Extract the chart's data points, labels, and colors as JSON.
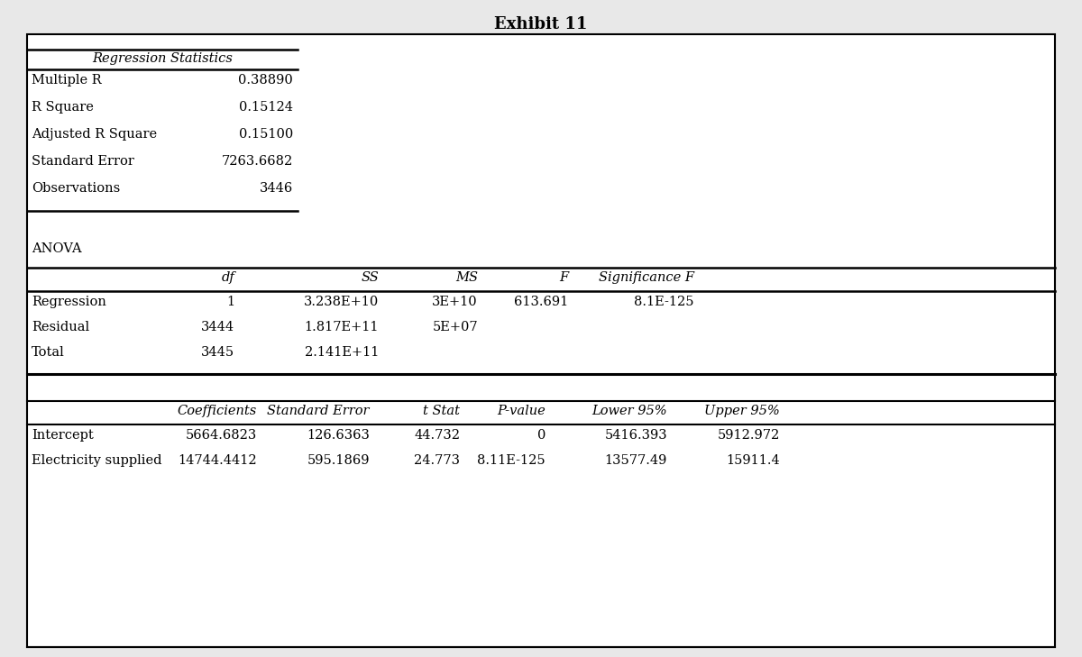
{
  "title": "Exhibit 11",
  "title_fontsize": 12,
  "title_fontweight": "bold",
  "bg_color": "#e8e8e8",
  "border_color": "#000000",
  "font_family": "DejaVu Serif",
  "reg_stats_header": "Regression Statistics",
  "reg_stats_rows": [
    [
      "Multiple R",
      "0.38890"
    ],
    [
      "R Square",
      "0.15124"
    ],
    [
      "Adjusted R Square",
      "0.15100"
    ],
    [
      "Standard Error",
      "7263.6682"
    ],
    [
      "Observations",
      "3446"
    ]
  ],
  "anova_label": "ANOVA",
  "anova_headers": [
    "",
    "df",
    "SS",
    "MS",
    "F",
    "Significance F"
  ],
  "anova_rows": [
    [
      "Regression",
      "1",
      "3.238E+10",
      "3E+10",
      "613.691",
      "8.1E-125"
    ],
    [
      "Residual",
      "3444",
      "1.817E+11",
      "5E+07",
      "",
      ""
    ],
    [
      "Total",
      "3445",
      "2.141E+11",
      "",
      "",
      ""
    ]
  ],
  "coeff_headers": [
    "",
    "Coefficients",
    "Standard Error",
    "t Stat",
    "P-value",
    "Lower 95%",
    "Upper 95%"
  ],
  "coeff_rows": [
    [
      "Intercept",
      "5664.6823",
      "126.6363",
      "44.732",
      "0",
      "5416.393",
      "5912.972"
    ],
    [
      "Electricity supplied",
      "14744.4412",
      "595.1869",
      "24.773",
      "8.11E-125",
      "13577.49",
      "15911.4"
    ]
  ],
  "fontsize": 10.5
}
